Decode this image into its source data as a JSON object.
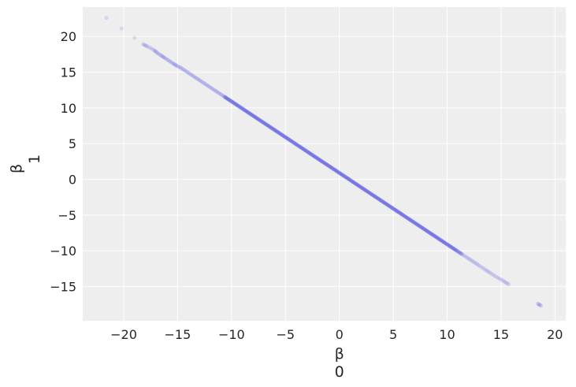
{
  "chart_data": {
    "type": "scatter",
    "title": "",
    "xlabel": {
      "symbol": "β",
      "index": "0"
    },
    "ylabel": {
      "symbol": "β",
      "index": "1"
    },
    "xlim": [
      -23.8,
      21.0
    ],
    "ylim": [
      -19.8,
      24.1
    ],
    "x_ticks": [
      -20,
      -15,
      -10,
      -5,
      0,
      5,
      10,
      15,
      20
    ],
    "y_ticks": [
      -15,
      -10,
      -5,
      0,
      5,
      10,
      15,
      20
    ],
    "grid": true,
    "legend": "none",
    "point_color": "#3535e0",
    "point_alpha": 0.12,
    "relationship": "beta1 ≈ 1.0 - beta0 (strong negative linear correlation)",
    "points": [
      [
        -21.6,
        22.6
      ],
      [
        -20.2,
        21.1
      ],
      [
        -19.0,
        19.8
      ],
      [
        -18.2,
        18.9
      ],
      [
        -17.8,
        18.6
      ],
      [
        -17.2,
        18.1
      ],
      [
        -16.9,
        17.7
      ],
      [
        -16.5,
        17.3
      ],
      [
        -16.2,
        17.0
      ],
      [
        -15.8,
        16.6
      ],
      [
        -15.4,
        16.2
      ],
      [
        -15.1,
        15.9
      ],
      [
        -14.7,
        15.6
      ],
      [
        -14.3,
        15.2
      ],
      [
        -13.9,
        14.8
      ],
      [
        -13.5,
        14.4
      ],
      [
        -13.1,
        14.0
      ],
      [
        -12.7,
        13.6
      ],
      [
        -12.3,
        13.2
      ],
      [
        -11.9,
        12.8
      ],
      [
        -11.5,
        12.4
      ],
      [
        -11.1,
        12.0
      ],
      [
        -10.7,
        11.6
      ],
      [
        -10.3,
        11.2
      ],
      [
        -9.9,
        10.8
      ],
      [
        -9.5,
        10.4
      ],
      [
        -9.1,
        10.0
      ],
      [
        -8.7,
        9.6
      ],
      [
        -8.3,
        9.2
      ],
      [
        -7.9,
        8.8
      ],
      [
        -7.5,
        8.4
      ],
      [
        -7.1,
        8.0
      ],
      [
        -6.7,
        7.6
      ],
      [
        -6.3,
        7.2
      ],
      [
        -5.9,
        6.8
      ],
      [
        -5.5,
        6.4
      ],
      [
        -5.1,
        6.0
      ],
      [
        -4.7,
        5.6
      ],
      [
        -4.3,
        5.2
      ],
      [
        -3.9,
        4.8
      ],
      [
        -3.5,
        4.4
      ],
      [
        -3.1,
        4.0
      ],
      [
        -2.7,
        3.6
      ],
      [
        -2.3,
        3.2
      ],
      [
        -1.9,
        2.8
      ],
      [
        -1.5,
        2.4
      ],
      [
        -1.1,
        2.0
      ],
      [
        -0.7,
        1.6
      ],
      [
        -0.3,
        1.2
      ],
      [
        0.1,
        0.8
      ],
      [
        0.5,
        0.4
      ],
      [
        0.9,
        0.0
      ],
      [
        1.3,
        -0.4
      ],
      [
        1.7,
        -0.8
      ],
      [
        2.1,
        -1.2
      ],
      [
        2.5,
        -1.6
      ],
      [
        2.9,
        -2.0
      ],
      [
        3.3,
        -2.4
      ],
      [
        3.7,
        -2.8
      ],
      [
        4.1,
        -3.2
      ],
      [
        4.5,
        -3.6
      ],
      [
        4.9,
        -4.0
      ],
      [
        5.3,
        -4.4
      ],
      [
        5.7,
        -4.8
      ],
      [
        6.1,
        -5.2
      ],
      [
        6.5,
        -5.6
      ],
      [
        6.9,
        -6.0
      ],
      [
        7.3,
        -6.4
      ],
      [
        7.7,
        -6.8
      ],
      [
        8.1,
        -7.2
      ],
      [
        8.5,
        -7.6
      ],
      [
        8.9,
        -8.0
      ],
      [
        9.3,
        -8.4
      ],
      [
        9.7,
        -8.8
      ],
      [
        10.1,
        -9.2
      ],
      [
        10.5,
        -9.6
      ],
      [
        10.9,
        -10.0
      ],
      [
        11.4,
        -10.5
      ],
      [
        11.9,
        -11.0
      ],
      [
        12.4,
        -11.5
      ],
      [
        12.9,
        -12.0
      ],
      [
        13.5,
        -12.6
      ],
      [
        14.0,
        -13.1
      ],
      [
        14.6,
        -13.7
      ],
      [
        15.2,
        -14.2
      ],
      [
        15.7,
        -14.7
      ],
      [
        18.4,
        -17.4
      ],
      [
        18.7,
        -17.7
      ]
    ]
  }
}
